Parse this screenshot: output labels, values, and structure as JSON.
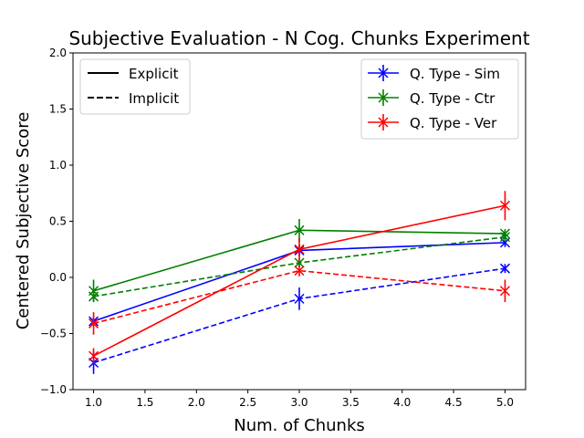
{
  "chart_data": {
    "type": "line",
    "title": "Subjective Evaluation - N Cog. Chunks Experiment",
    "xlabel": "Num. of Chunks",
    "ylabel": "Centered Subjective Score",
    "xlim": [
      0.8,
      5.2
    ],
    "ylim": [
      -1.0,
      2.0
    ],
    "x": [
      1.0,
      3.0,
      5.0
    ],
    "xticks": [
      "1.0",
      "1.5",
      "2.0",
      "2.5",
      "3.0",
      "3.5",
      "4.0",
      "4.5",
      "5.0"
    ],
    "yticks": [
      "−1.0",
      "−0.5",
      "0.0",
      "0.5",
      "1.0",
      "1.5",
      "2.0"
    ],
    "grid": false,
    "legend_style": {
      "placement": "top-left",
      "entries": [
        {
          "label": "Explicit",
          "dash": "solid"
        },
        {
          "label": "Implicit",
          "dash": "dashed"
        }
      ]
    },
    "legend_type": {
      "placement": "top-right",
      "entries": [
        {
          "label": "Q. Type - Sim",
          "color": "#0000ff"
        },
        {
          "label": "Q. Type - Ctr",
          "color": "#008000"
        },
        {
          "label": "Q. Type - Ver",
          "color": "#ff0000"
        }
      ]
    },
    "series": [
      {
        "name": "Sim - Explicit",
        "color": "#0000ff",
        "dash": "solid",
        "values": [
          -0.39,
          0.24,
          0.31
        ],
        "errors": [
          0.04,
          0.05,
          0.04
        ]
      },
      {
        "name": "Sim - Implicit",
        "color": "#0000ff",
        "dash": "dashed",
        "values": [
          -0.76,
          -0.19,
          0.08
        ],
        "errors": [
          0.1,
          0.1,
          0.04
        ]
      },
      {
        "name": "Ctr - Explicit",
        "color": "#008000",
        "dash": "solid",
        "values": [
          -0.12,
          0.42,
          0.39
        ],
        "errors": [
          0.1,
          0.1,
          0.04
        ]
      },
      {
        "name": "Ctr - Implicit",
        "color": "#008000",
        "dash": "dashed",
        "values": [
          -0.17,
          0.13,
          0.36
        ],
        "errors": [
          0.04,
          0.04,
          0.04
        ]
      },
      {
        "name": "Ver - Explicit",
        "color": "#ff0000",
        "dash": "solid",
        "values": [
          -0.7,
          0.25,
          0.64
        ],
        "errors": [
          0.07,
          0.1,
          0.13
        ]
      },
      {
        "name": "Ver - Implicit",
        "color": "#ff0000",
        "dash": "dashed",
        "values": [
          -0.41,
          0.06,
          -0.12
        ],
        "errors": [
          0.1,
          0.05,
          0.1
        ]
      }
    ]
  }
}
